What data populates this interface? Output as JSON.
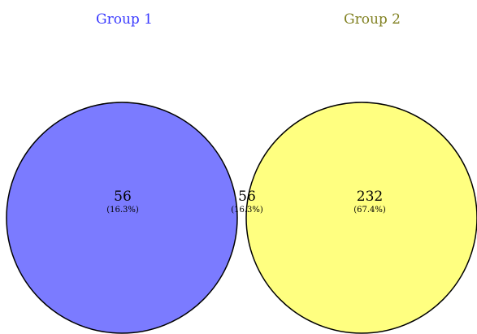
{
  "sets": [
    {
      "name": "Group 1",
      "color": "#7b7bff",
      "label_color": "#3a3aff"
    },
    {
      "name": "Group 2",
      "color": "#ffff80",
      "label_color": "#808020"
    }
  ],
  "overlap_color": "#c0c08a",
  "regions": {
    "group1_only": {
      "count": "56",
      "percent": "(16.3%)"
    },
    "intersection": {
      "count": "56",
      "percent": "(16.3%)"
    },
    "group2_only": {
      "count": "232",
      "percent": "(67.4%)"
    }
  }
}
